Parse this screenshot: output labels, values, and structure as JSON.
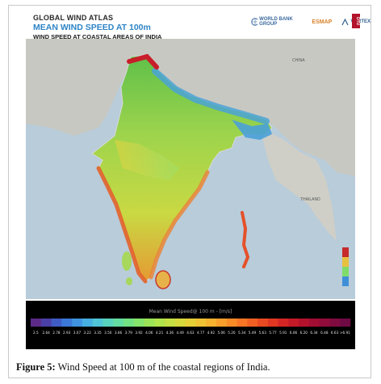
{
  "header": {
    "line1": "GLOBAL WIND ATLAS",
    "line2": "MEAN WIND SPEED AT 100m",
    "line3": "WIND SPEED AT COASTAL AREAS OF INDIA"
  },
  "logos": {
    "world_bank": "WORLD BANK GROUP",
    "esmap": "ESMAP",
    "vortex": "VORTEX",
    "dtu": "DTU"
  },
  "map_labels": {
    "china": "CHINA",
    "thailand": "THAILAND"
  },
  "colors": {
    "sea": "#b8ccda",
    "land_outside": "#c8c8c2",
    "india_base": "#9ccd4a",
    "legend_bg": "#000000"
  },
  "legend": {
    "title": "Mean Wind Speed@ 100 m - [m/s]",
    "ticks": [
      "2.5",
      "2.64",
      "2.78",
      "2.93",
      "3.07",
      "3.22",
      "3.35",
      "3.50",
      "3.66",
      "3.79",
      "3.92",
      "4.06",
      "4.21",
      "4.36",
      "4.49",
      "4.63",
      "4.77",
      "4.92",
      "5.06",
      "5.20",
      "5.34",
      "5.49",
      "5.63",
      "5.77",
      "5.91",
      "6.06",
      "6.20",
      "6.34",
      "6.48",
      "6.63",
      ">6.91"
    ],
    "colors": [
      "#5c2a86",
      "#4a3fa6",
      "#3f5bc4",
      "#3b78d8",
      "#3f93e0",
      "#46aee0",
      "#4fc4d6",
      "#58d3bd",
      "#63dca1",
      "#72e184",
      "#85e46b",
      "#9ce457",
      "#b1e34b",
      "#c5e043",
      "#d6d93c",
      "#e5cf37",
      "#efc233",
      "#f5b22f",
      "#f89f2b",
      "#f98b27",
      "#f77524",
      "#f25f22",
      "#ea4a21",
      "#e03722",
      "#d32624",
      "#c41a28",
      "#b3122d",
      "#a20e33",
      "#910c3a",
      "#800b40",
      "#6d0a44"
    ]
  },
  "caption": {
    "label": "Figure 5:",
    "text": "Wind Speed at 100 m of the coastal regions of India."
  }
}
